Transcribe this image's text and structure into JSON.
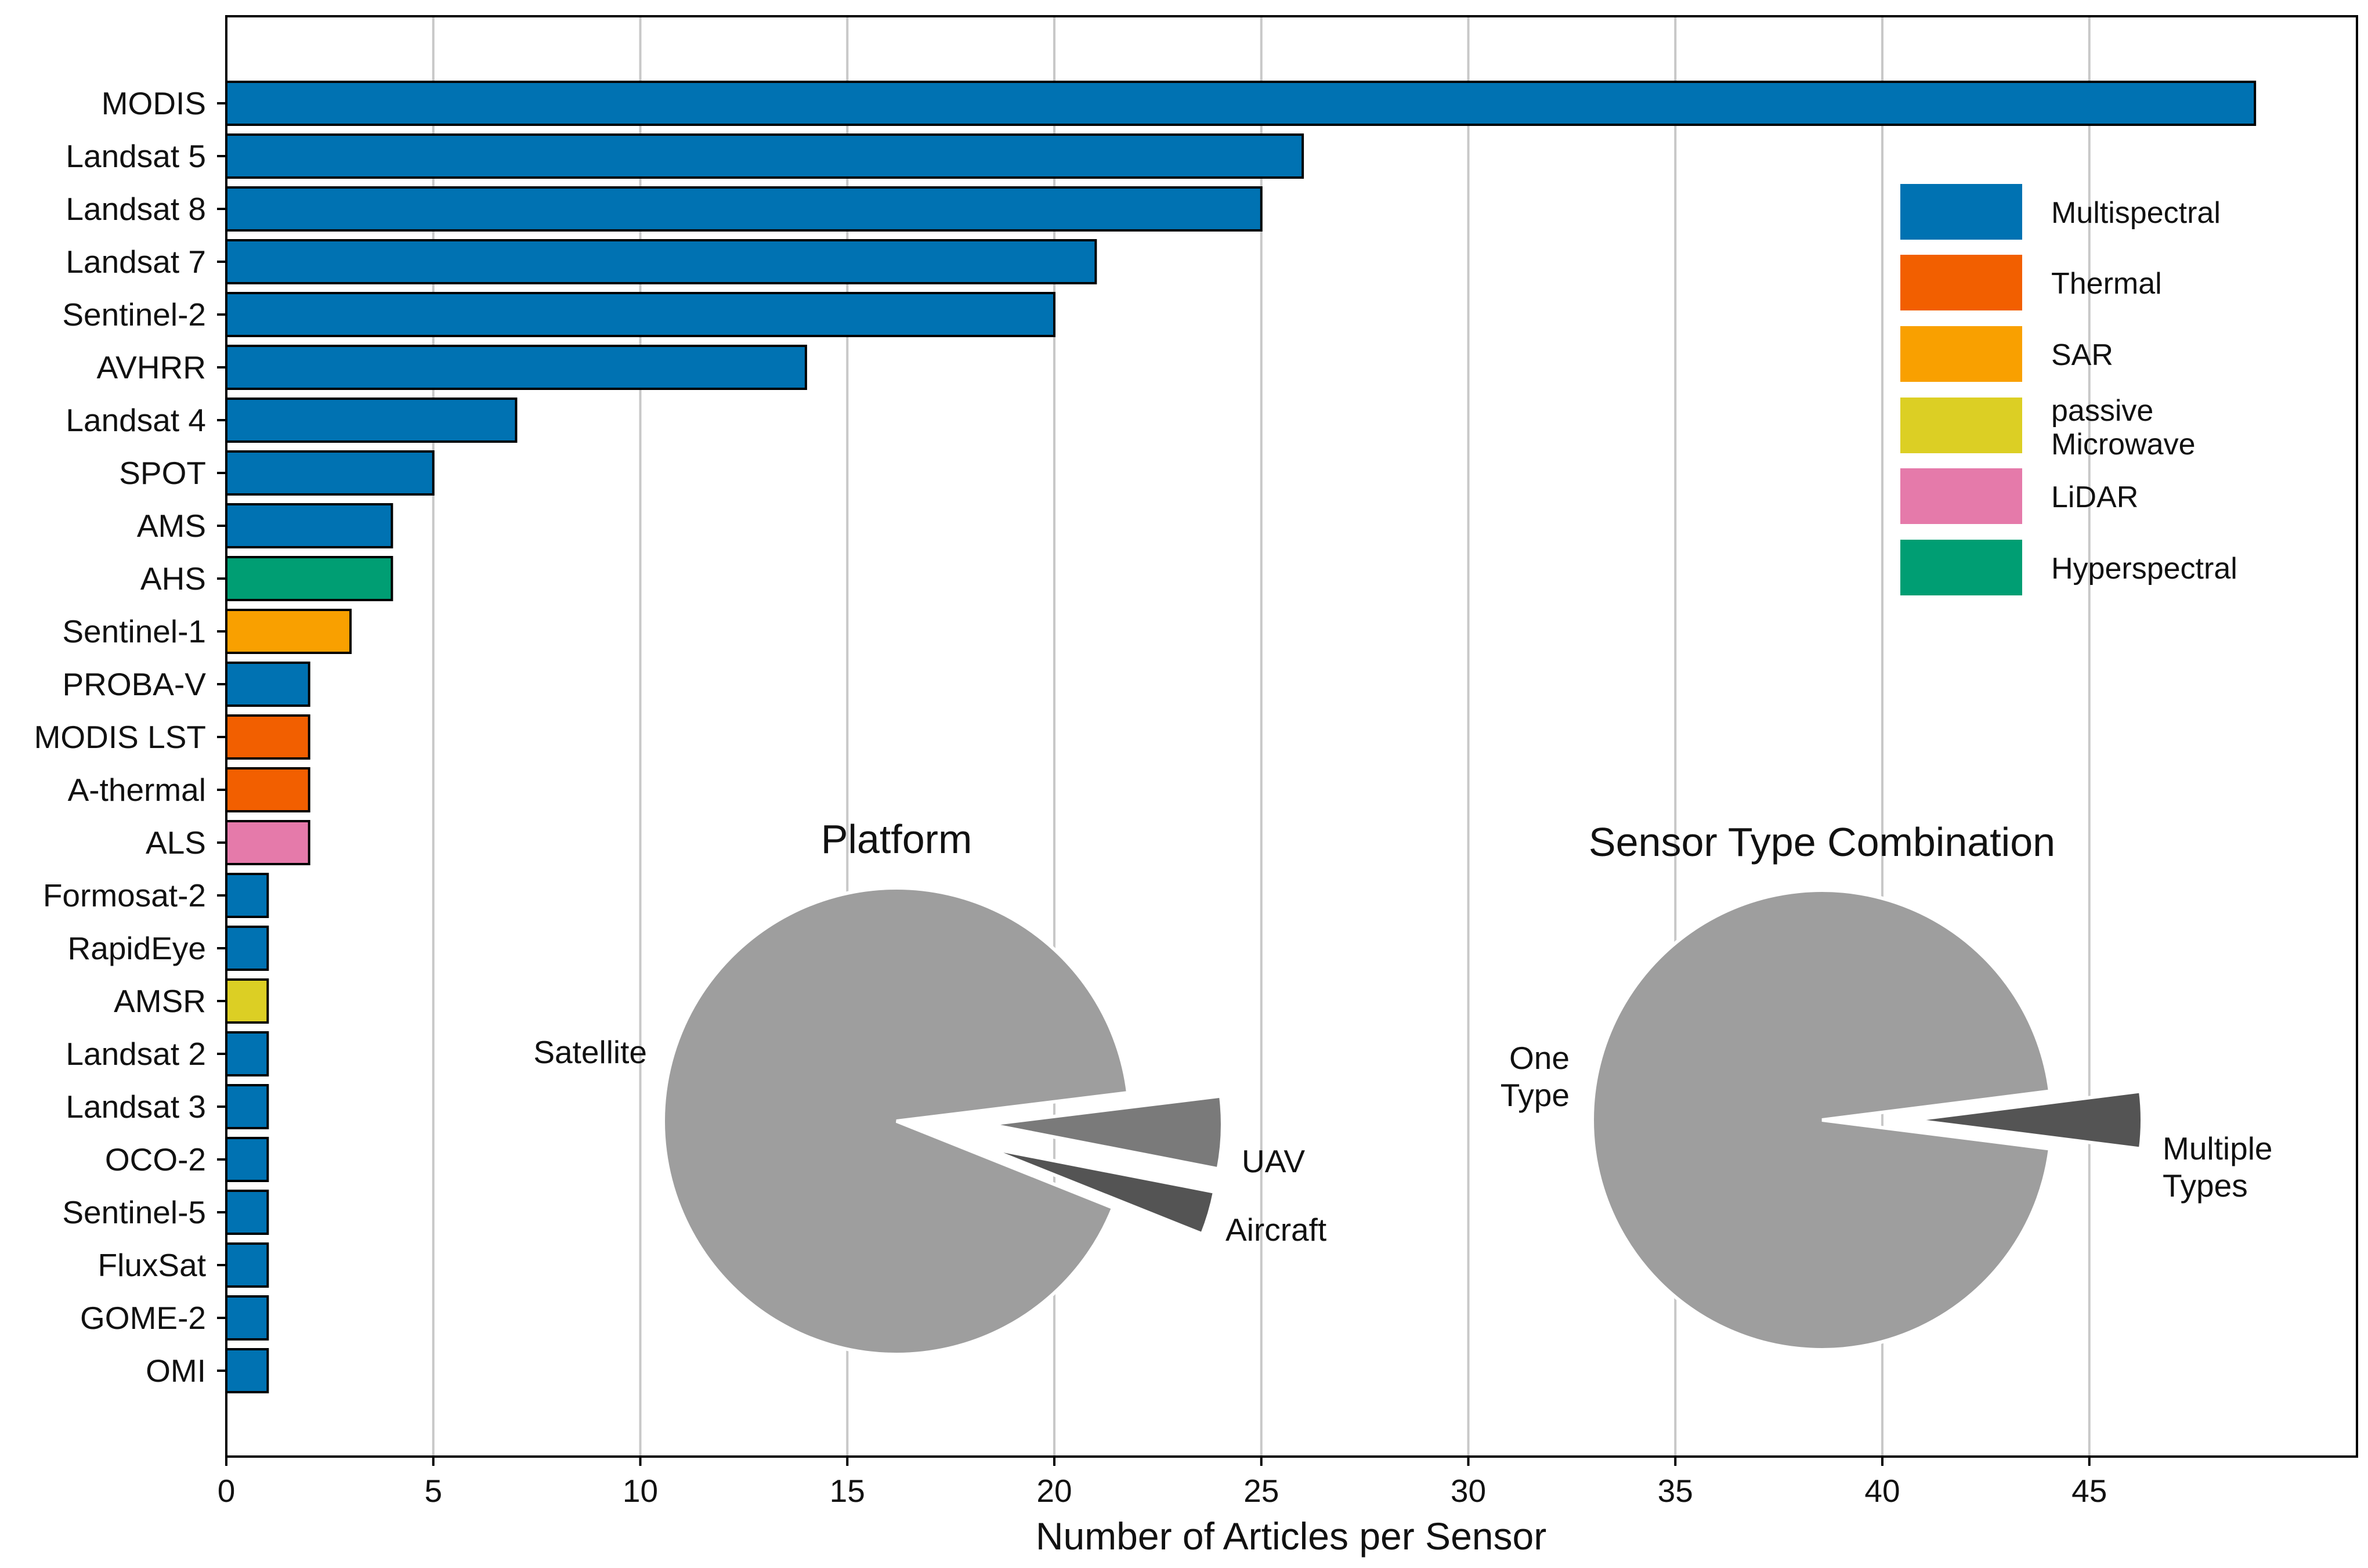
{
  "chart_data": [
    {
      "type": "bar",
      "orientation": "horizontal",
      "title": "",
      "xlabel": "Number of Articles per Sensor",
      "ylabel": "",
      "xlim": [
        0,
        51.5
      ],
      "xticks": [
        0,
        5,
        10,
        15,
        20,
        25,
        30,
        35,
        40,
        45
      ],
      "grid": "vertical",
      "categories": [
        "MODIS",
        "Landsat 5",
        "Landsat 8",
        "Landsat 7",
        "Sentinel-2",
        "AVHRR",
        "Landsat 4",
        "SPOT",
        "AMS",
        "AHS",
        "Sentinel-1",
        "PROBA-V",
        "MODIS LST",
        "A-thermal",
        "ALS",
        "Formosat-2",
        "RapidEye",
        "AMSR",
        "Landsat 2",
        "Landsat 3",
        "OCO-2",
        "Sentinel-5",
        "FluxSat",
        "GOME-2",
        "OMI"
      ],
      "values": [
        49,
        26,
        25,
        21,
        20,
        14,
        7,
        5,
        4,
        4,
        3,
        2,
        2,
        2,
        2,
        1,
        1,
        1,
        1,
        1,
        1,
        1,
        1,
        1,
        1
      ],
      "sensor_types": [
        "Multispectral",
        "Multispectral",
        "Multispectral",
        "Multispectral",
        "Multispectral",
        "Multispectral",
        "Multispectral",
        "Multispectral",
        "Multispectral",
        "Hyperspectral",
        "SAR",
        "Multispectral",
        "Thermal",
        "Thermal",
        "LiDAR",
        "Multispectral",
        "Multispectral",
        "passive Microwave",
        "Multispectral",
        "Multispectral",
        "Multispectral",
        "Multispectral",
        "Multispectral",
        "Multispectral",
        "Multispectral"
      ],
      "legend": {
        "placement": "top-right",
        "entries": [
          {
            "key": "Multispectral",
            "label": "Multispectral",
            "color": "#0072b2"
          },
          {
            "key": "Thermal",
            "label": "Thermal",
            "color": "#f25f00"
          },
          {
            "key": "SAR",
            "label": "SAR",
            "color": "#f9a000"
          },
          {
            "key": "passive Microwave",
            "label": "passive Microwave",
            "color": "#dccf24"
          },
          {
            "key": "LiDAR",
            "label": "LiDAR",
            "color": "#e57aaa"
          },
          {
            "key": "Hyperspectral",
            "label": "Hyperspectral",
            "color": "#009e73"
          }
        ]
      }
    },
    {
      "type": "pie",
      "title": "Platform",
      "slices": [
        {
          "label": "Satellite",
          "value": 92,
          "color": "#9e9e9e",
          "exploded": false
        },
        {
          "label": "UAV",
          "value": 3,
          "color": "#545454",
          "exploded": true
        },
        {
          "label": "Aircraft",
          "value": 5,
          "color": "#7a7a7a",
          "exploded": true
        }
      ]
    },
    {
      "type": "pie",
      "title": "Sensor Type Combination",
      "slices": [
        {
          "label": "One Type",
          "value": 96,
          "color": "#9e9e9e",
          "exploded": false
        },
        {
          "label": "Multiple Types",
          "value": 4,
          "color": "#545454",
          "exploded": true
        }
      ]
    }
  ]
}
